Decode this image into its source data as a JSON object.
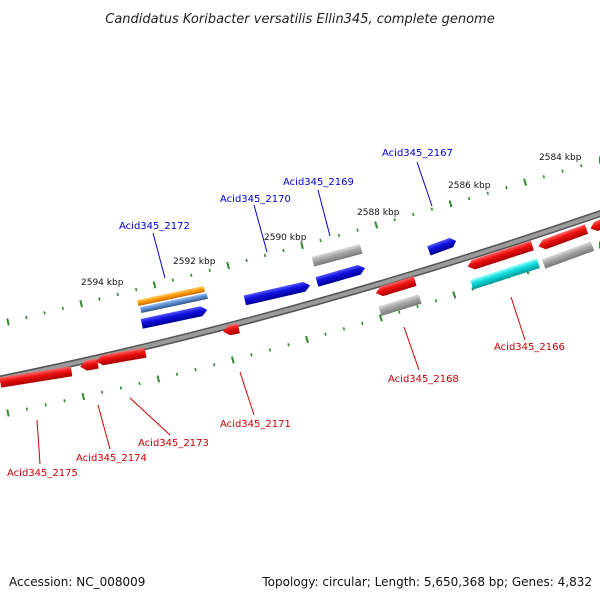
{
  "title": "Candidatus Koribacter versatilis Ellin345, complete genome",
  "accession": "Accession: NC_008009",
  "topology": "Topology: circular; Length: 5,650,368 bp; Genes: 4,832",
  "colors": {
    "forward_label": "#0000cc",
    "reverse_label": "#cc0000",
    "backbone": "#8a8a8a",
    "tick": "#2e8b2e",
    "gene_red": "#ee1111",
    "gene_blue": "#1111dd",
    "gene_grey": "#aaaaaa",
    "gene_cyan": "#11dddd",
    "gene_orange": "#ff9900",
    "gene_steel": "#5588cc"
  },
  "scale_labels": [
    "2584 kbp",
    "2586 kbp",
    "2588 kbp",
    "2590 kbp",
    "2592 kbp",
    "2594 kbp"
  ],
  "forward_labels": [
    "Acid345_2167",
    "Acid345_2169",
    "Acid345_2170",
    "Acid345_2172"
  ],
  "reverse_labels": [
    "Acid345_2166",
    "Acid345_2168",
    "Acid345_2171",
    "Acid345_2173",
    "Acid345_2174",
    "Acid345_2175"
  ]
}
